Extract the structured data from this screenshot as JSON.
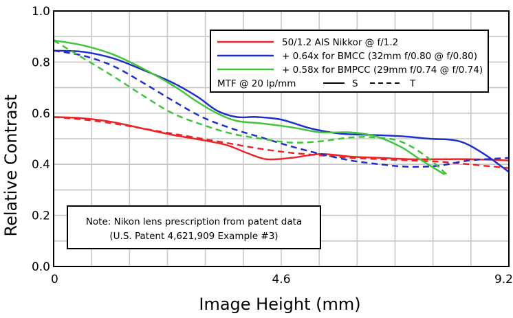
{
  "chart_data": {
    "type": "line",
    "title": "",
    "xlabel": "Image Height (mm)",
    "ylabel": "Relative Contrast",
    "xlim": [
      0,
      9.2
    ],
    "ylim": [
      0,
      1.0
    ],
    "x_ticks": [
      0,
      4.6,
      9.2
    ],
    "x_tick_labels": [
      "0",
      "4.6",
      "9.2"
    ],
    "y_ticks": [
      0,
      0.2,
      0.4,
      0.6,
      0.8,
      1.0
    ],
    "y_tick_labels": [
      "0.0",
      "0.2",
      "0.4",
      "0.6",
      "0.8",
      "1.0"
    ],
    "grid": true,
    "legend": {
      "placement": "top-right",
      "entries": [
        {
          "label": "50/1.2 AIS Nikkor @ f/1.2",
          "color": "#e8262a"
        },
        {
          "label": "+ 0.64x for BMCC (32mm f/0.80 @ f/0.80)",
          "color": "#1f2fc8"
        },
        {
          "label": "+ 0.58x for BMPCC (29mm f/0.74 @ f/0.74)",
          "color": "#3fc43a"
        }
      ],
      "style_caption": "MTF @ 20 lp/mm",
      "solid_label": "S",
      "dashed_label": "T"
    },
    "note": {
      "placement": "bottom-left",
      "line1": "Note:  Nikon lens prescription from patent data",
      "line2": "(U.S. Patent 4,621,909 Example #3)"
    },
    "series": [
      {
        "name": "50/1.2 AIS Nikkor @ f/1.2 - S",
        "color": "#e8262a",
        "dash": false,
        "x": [
          0,
          0.6,
          1.2,
          1.8,
          2.4,
          3.0,
          3.5,
          3.9,
          4.3,
          4.8,
          5.4,
          6.0,
          6.6,
          7.2,
          7.8,
          8.4,
          9.2
        ],
        "y": [
          0.585,
          0.58,
          0.565,
          0.54,
          0.515,
          0.495,
          0.475,
          0.445,
          0.42,
          0.425,
          0.44,
          0.43,
          0.425,
          0.42,
          0.42,
          0.42,
          0.415
        ]
      },
      {
        "name": "50/1.2 AIS Nikkor @ f/1.2 - T",
        "color": "#e8262a",
        "dash": true,
        "x": [
          0,
          0.6,
          1.2,
          1.8,
          2.4,
          3.0,
          3.6,
          4.2,
          4.8,
          5.4,
          6.0,
          6.6,
          7.2,
          7.8,
          8.4,
          9.2
        ],
        "y": [
          0.585,
          0.575,
          0.56,
          0.54,
          0.52,
          0.5,
          0.48,
          0.46,
          0.445,
          0.435,
          0.425,
          0.42,
          0.415,
          0.41,
          0.4,
          0.385
        ]
      },
      {
        "name": "+ 0.64x for BMCC (32mm f/0.80 @ f/0.80) - S",
        "color": "#1f2fc8",
        "dash": false,
        "x": [
          0,
          0.6,
          1.2,
          1.8,
          2.4,
          2.9,
          3.3,
          3.7,
          4.1,
          4.6,
          5.2,
          5.8,
          6.4,
          7.0,
          7.6,
          8.2,
          8.7,
          9.2
        ],
        "y": [
          0.845,
          0.84,
          0.815,
          0.77,
          0.72,
          0.665,
          0.61,
          0.585,
          0.585,
          0.575,
          0.54,
          0.52,
          0.515,
          0.51,
          0.5,
          0.49,
          0.44,
          0.37
        ]
      },
      {
        "name": "+ 0.64x for BMCC (32mm f/0.80 @ f/0.80) - T",
        "color": "#1f2fc8",
        "dash": true,
        "x": [
          0,
          0.6,
          1.2,
          1.8,
          2.4,
          3.0,
          3.6,
          4.2,
          4.8,
          5.4,
          6.0,
          6.6,
          7.2,
          7.8,
          8.4,
          9.2
        ],
        "y": [
          0.845,
          0.825,
          0.785,
          0.72,
          0.65,
          0.585,
          0.54,
          0.505,
          0.47,
          0.44,
          0.415,
          0.4,
          0.39,
          0.395,
          0.415,
          0.425
        ]
      },
      {
        "name": "+ 0.58x for BMPCC (29mm f/0.74 @ f/0.74) - S",
        "color": "#3fc43a",
        "dash": false,
        "x": [
          0,
          0.6,
          1.2,
          1.8,
          2.4,
          2.9,
          3.3,
          3.7,
          4.2,
          4.8,
          5.4,
          6.0,
          6.5,
          7.0,
          7.4,
          7.9
        ],
        "y": [
          0.885,
          0.865,
          0.83,
          0.775,
          0.71,
          0.645,
          0.6,
          0.57,
          0.56,
          0.545,
          0.525,
          0.525,
          0.51,
          0.47,
          0.42,
          0.36
        ]
      },
      {
        "name": "+ 0.58x for BMPCC (29mm f/0.74 @ f/0.74) - T",
        "color": "#3fc43a",
        "dash": true,
        "x": [
          0,
          0.6,
          1.2,
          1.8,
          2.4,
          3.0,
          3.6,
          4.2,
          4.8,
          5.4,
          6.0,
          6.5,
          7.0,
          7.5,
          8.0
        ],
        "y": [
          0.885,
          0.815,
          0.745,
          0.67,
          0.6,
          0.555,
          0.52,
          0.5,
          0.485,
          0.49,
          0.505,
          0.505,
          0.49,
          0.435,
          0.35
        ]
      }
    ]
  }
}
